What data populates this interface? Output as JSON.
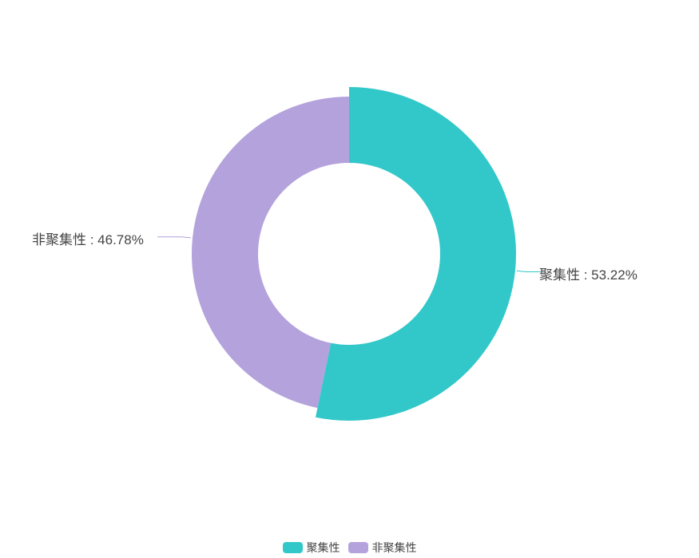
{
  "chart_data": {
    "type": "pie",
    "variant": "donut",
    "categories": [
      "聚集性",
      "非聚集性"
    ],
    "values": [
      53.22,
      46.78
    ],
    "labels": [
      "聚集性 : 53.22%",
      "非聚集性 : 46.78%"
    ],
    "colors": [
      "#32C8CA",
      "#B4A2DC"
    ],
    "highlighted": "聚集性",
    "legend": {
      "position": "bottom",
      "items": [
        "聚集性",
        "非聚集性"
      ]
    }
  }
}
